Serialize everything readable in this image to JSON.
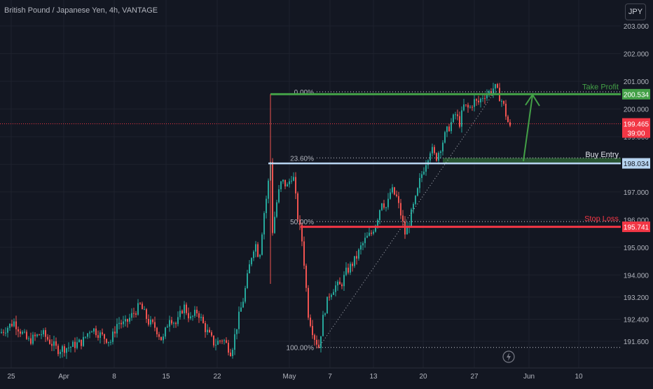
{
  "header": {
    "title": "British Pound / Japanese Yen, 4h, VANTAGE",
    "currency_button": "JPY"
  },
  "colors": {
    "background": "#131722",
    "grid": "#1e222d",
    "candle_up": "#26a69a",
    "candle_down": "#ef5350",
    "take_profit": "#43a047",
    "buy_entry_line": "#b7d4f0",
    "stop_loss": "#f23645",
    "current_price": "#f23645",
    "fib_line": "#b2b5be",
    "axis_text": "#b2b5be"
  },
  "chart_data": {
    "type": "candlestick",
    "y_axis": {
      "ticks": [
        "203.000",
        "202.000",
        "201.000",
        "200.000",
        "199.000",
        "198.000",
        "197.000",
        "196.000",
        "195.000",
        "194.000",
        "193.200",
        "192.400",
        "191.600"
      ],
      "min": 191.2,
      "max": 203.3
    },
    "x_axis": {
      "ticks": [
        "25",
        "Apr",
        "8",
        "15",
        "22",
        "May",
        "7",
        "13",
        "20",
        "27",
        "Jun",
        "10"
      ]
    },
    "fib_levels": [
      {
        "label": "0.00%",
        "price": 200.62
      },
      {
        "label": "23.60%",
        "price": 198.23
      },
      {
        "label": "50.00%",
        "price": 195.93
      },
      {
        "label": "100.00%",
        "price": 191.38
      }
    ],
    "levels": {
      "take_profit": {
        "label": "Take Profit",
        "price": 200.534,
        "price_label": "200.534"
      },
      "buy_entry": {
        "label": "Buy Entry",
        "price": 198.034,
        "price_label": "198.034"
      },
      "stop_loss": {
        "label": "Stop Loss",
        "price": 195.741,
        "price_label": "195.741"
      }
    },
    "current_price": {
      "price": 199.465,
      "label": "199.465",
      "countdown": "39:00"
    },
    "candle_path": [
      [
        191.9,
        0
      ],
      [
        192.3,
        20
      ],
      [
        191.6,
        40
      ],
      [
        191.9,
        60
      ],
      [
        191.3,
        82
      ],
      [
        191.4,
        100
      ],
      [
        191.6,
        118
      ],
      [
        192.1,
        130
      ],
      [
        191.8,
        145
      ],
      [
        191.6,
        158
      ],
      [
        192.3,
        168
      ],
      [
        192.2,
        178
      ],
      [
        192.6,
        190
      ],
      [
        192.9,
        200
      ],
      [
        192.3,
        212
      ],
      [
        192.1,
        222
      ],
      [
        191.6,
        232
      ],
      [
        192.5,
        242
      ],
      [
        192.2,
        252
      ],
      [
        192.9,
        262
      ],
      [
        192.4,
        272
      ],
      [
        192.7,
        282
      ],
      [
        192.1,
        292
      ],
      [
        191.5,
        306
      ],
      [
        191.7,
        318
      ],
      [
        191.2,
        330
      ],
      [
        192.4,
        340
      ],
      [
        193.2,
        348
      ],
      [
        194.6,
        358
      ],
      [
        195.2,
        364
      ],
      [
        194.6,
        370
      ],
      [
        196.1,
        376
      ],
      [
        197.1,
        382
      ],
      [
        198.1,
        386
      ],
      [
        195.6,
        389
      ],
      [
        196.8,
        396
      ],
      [
        197.4,
        402
      ],
      [
        197.2,
        410
      ],
      [
        197.7,
        418
      ],
      [
        196.1,
        425
      ],
      [
        195.1,
        432
      ],
      [
        193.8,
        436
      ],
      [
        192.6,
        440
      ],
      [
        191.8,
        448
      ],
      [
        191.4,
        455
      ],
      [
        192.6,
        462
      ],
      [
        193.3,
        470
      ],
      [
        193.6,
        478
      ],
      [
        193.6,
        486
      ],
      [
        194.1,
        494
      ],
      [
        194.3,
        500
      ],
      [
        194.6,
        508
      ],
      [
        195.0,
        515
      ],
      [
        195.3,
        522
      ],
      [
        195.5,
        530
      ],
      [
        196.0,
        538
      ],
      [
        196.7,
        545
      ],
      [
        196.4,
        552
      ],
      [
        197.1,
        558
      ],
      [
        196.8,
        566
      ],
      [
        196.2,
        572
      ],
      [
        195.5,
        578
      ],
      [
        195.7,
        582
      ],
      [
        196.3,
        588
      ],
      [
        196.8,
        594
      ],
      [
        197.5,
        600
      ],
      [
        198.1,
        608
      ],
      [
        198.6,
        615
      ],
      [
        198.2,
        622
      ],
      [
        198.7,
        630
      ],
      [
        199.1,
        636
      ],
      [
        199.4,
        642
      ],
      [
        199.8,
        650
      ],
      [
        199.5,
        656
      ],
      [
        200.1,
        662
      ],
      [
        200.0,
        670
      ],
      [
        200.3,
        676
      ],
      [
        200.2,
        682
      ],
      [
        200.5,
        690
      ],
      [
        200.6,
        698
      ],
      [
        200.8,
        706
      ],
      [
        200.5,
        712
      ],
      [
        200.2,
        718
      ],
      [
        199.6,
        724
      ],
      [
        199.3,
        728
      ]
    ]
  }
}
